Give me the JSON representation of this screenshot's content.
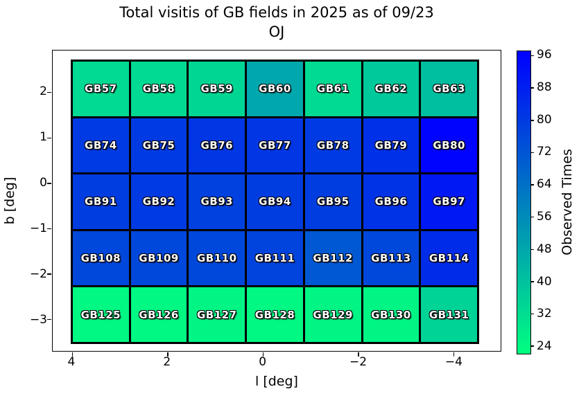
{
  "chart_data": {
    "type": "heatmap",
    "title": "Total visitis of GB fields in 2025 as of 09/23",
    "subtitle": "OJ",
    "xlabel": "l [deg]",
    "ylabel": "b [deg]",
    "colorbar_label": "Observed Times",
    "colorbar_ticks": [
      96,
      88,
      80,
      72,
      64,
      56,
      48,
      40,
      32,
      24
    ],
    "vmin": 22,
    "vmax": 97,
    "colormap": "winter_r",
    "colormap_low_color": "#00FF80",
    "colormap_high_color": "#0000FF",
    "x_ticks": [
      "4",
      "2",
      "0",
      "−2",
      "−4"
    ],
    "y_ticks": [
      "2",
      "1",
      "0",
      "−1",
      "−2",
      "−3"
    ],
    "x_axis_reversed": true,
    "cell_border_color": "#000000",
    "cells": [
      [
        {
          "label": "GB57",
          "value": 33
        },
        {
          "label": "GB58",
          "value": 33
        },
        {
          "label": "GB59",
          "value": 34
        },
        {
          "label": "GB60",
          "value": 48
        },
        {
          "label": "GB61",
          "value": 33
        },
        {
          "label": "GB62",
          "value": 38
        },
        {
          "label": "GB63",
          "value": 41
        }
      ],
      [
        {
          "label": "GB74",
          "value": 80
        },
        {
          "label": "GB75",
          "value": 80
        },
        {
          "label": "GB76",
          "value": 81
        },
        {
          "label": "GB77",
          "value": 81
        },
        {
          "label": "GB78",
          "value": 80
        },
        {
          "label": "GB79",
          "value": 83
        },
        {
          "label": "GB80",
          "value": 96
        }
      ],
      [
        {
          "label": "GB91",
          "value": 79
        },
        {
          "label": "GB92",
          "value": 80
        },
        {
          "label": "GB93",
          "value": 78
        },
        {
          "label": "GB94",
          "value": 79
        },
        {
          "label": "GB95",
          "value": 79
        },
        {
          "label": "GB96",
          "value": 82
        },
        {
          "label": "GB97",
          "value": 90
        }
      ],
      [
        {
          "label": "GB108",
          "value": 76
        },
        {
          "label": "GB109",
          "value": 76
        },
        {
          "label": "GB110",
          "value": 76
        },
        {
          "label": "GB111",
          "value": 77
        },
        {
          "label": "GB112",
          "value": 71
        },
        {
          "label": "GB113",
          "value": 76
        },
        {
          "label": "GB114",
          "value": 84
        }
      ],
      [
        {
          "label": "GB125",
          "value": 24
        },
        {
          "label": "GB126",
          "value": 24
        },
        {
          "label": "GB127",
          "value": 25
        },
        {
          "label": "GB128",
          "value": 24
        },
        {
          "label": "GB129",
          "value": 25
        },
        {
          "label": "GB130",
          "value": 25
        },
        {
          "label": "GB131",
          "value": 35
        }
      ]
    ]
  }
}
